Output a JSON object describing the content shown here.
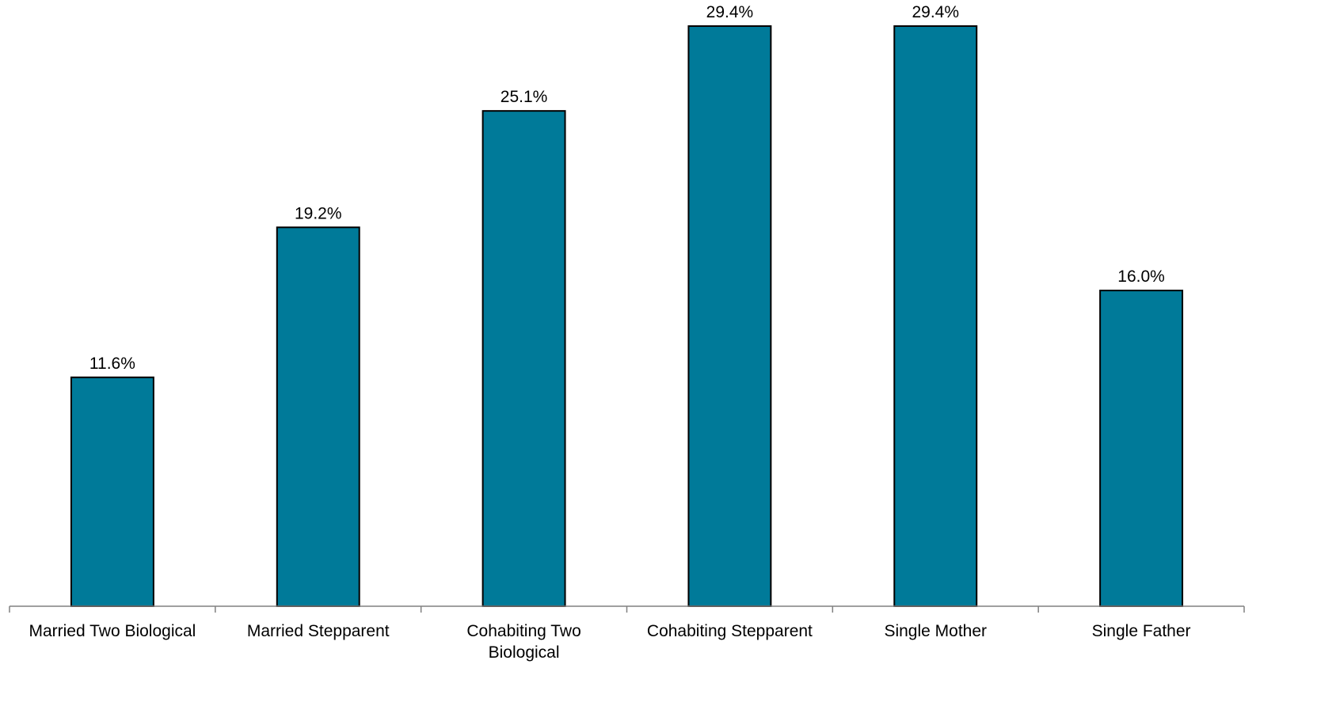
{
  "chart_data": {
    "type": "bar",
    "title": "",
    "xlabel": "",
    "ylabel": "",
    "categories": [
      "Married Two Biological",
      "Married Stepparent",
      "Cohabiting Two Biological",
      "Cohabiting Stepparent",
      "Single Mother",
      "Single Father"
    ],
    "category_lines": [
      [
        "Married Two Biological"
      ],
      [
        "Married Stepparent"
      ],
      [
        "Cohabiting Two",
        "Biological"
      ],
      [
        "Cohabiting Stepparent"
      ],
      [
        "Single Mother"
      ],
      [
        "Single Father"
      ]
    ],
    "values": [
      11.6,
      19.2,
      25.1,
      29.4,
      29.4,
      16.0
    ],
    "data_labels": [
      "11.6%",
      "19.2%",
      "25.1%",
      "29.4%",
      "29.4%",
      "16.0%"
    ],
    "ylim": [
      0,
      30.4
    ],
    "grid": false,
    "legend": "none",
    "bar_color": "#007A99",
    "bar_edge_color": "#000000",
    "axis_color": "#808080"
  }
}
